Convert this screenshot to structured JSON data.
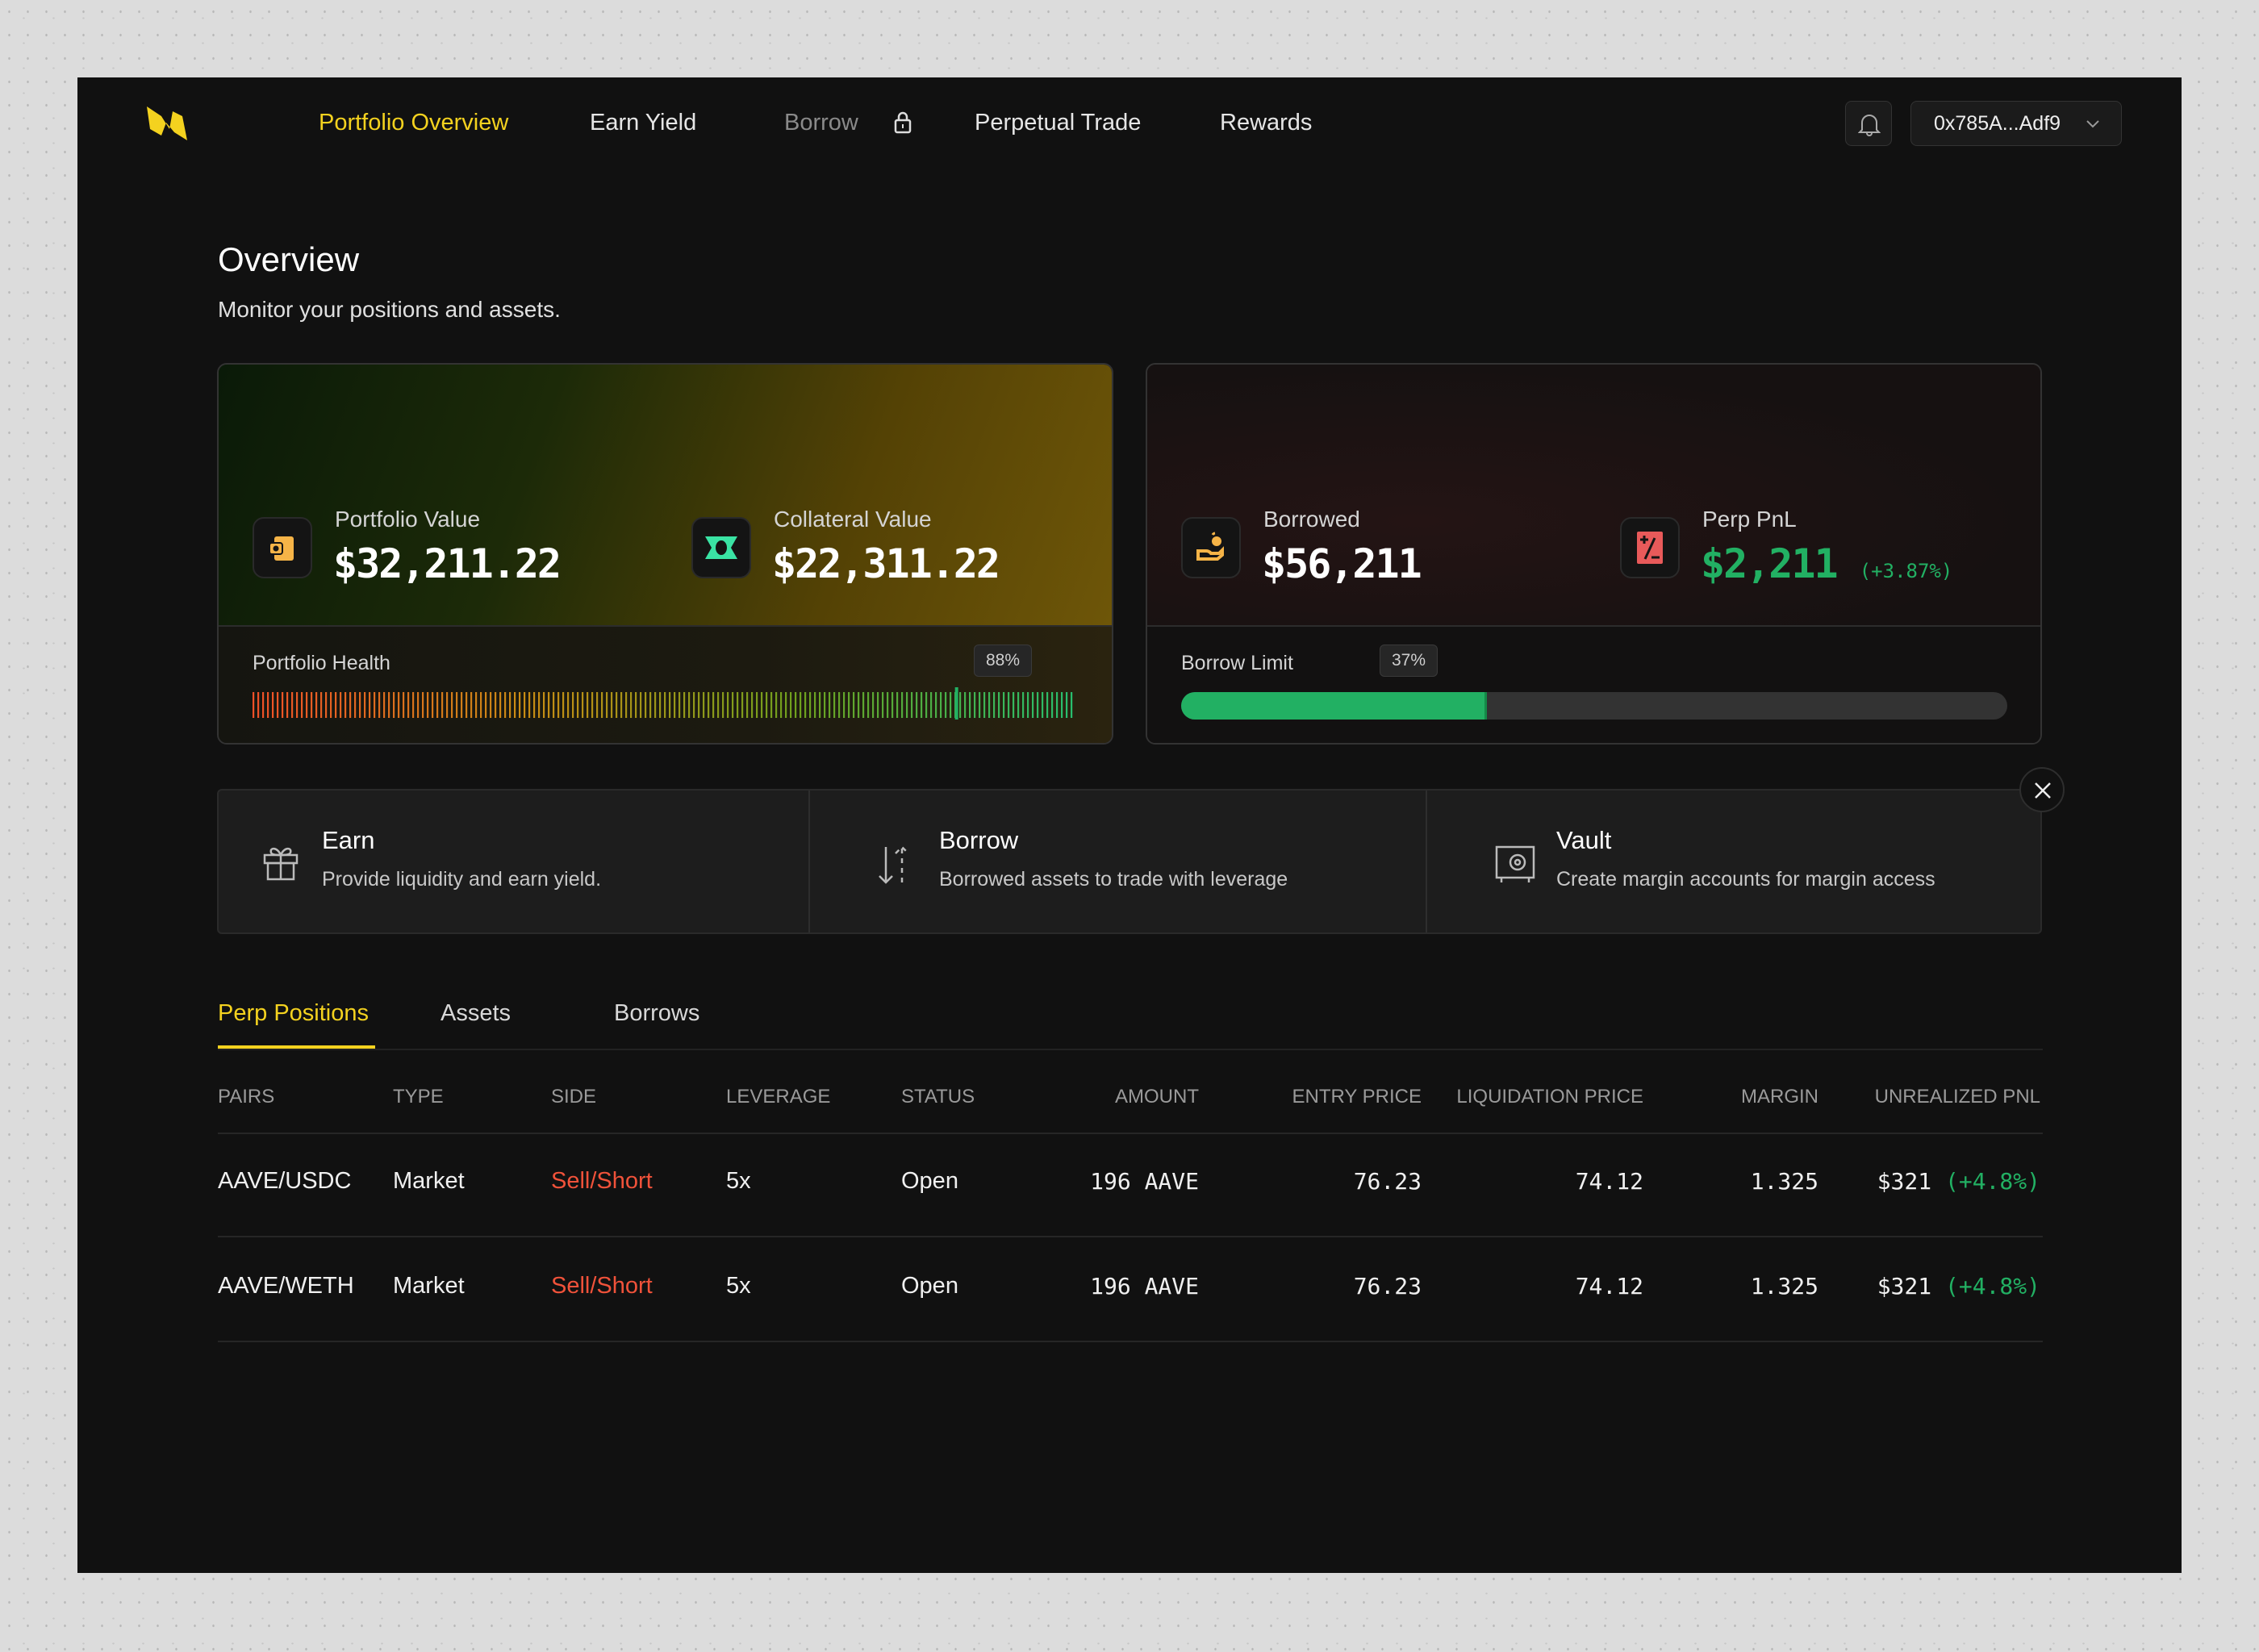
{
  "nav": {
    "items": [
      {
        "label": "Portfolio Overview"
      },
      {
        "label": "Earn Yield"
      },
      {
        "label": "Borrow"
      },
      {
        "label": "Perpetual Trade"
      },
      {
        "label": "Rewards"
      }
    ],
    "wallet": "0x785A...Adf9"
  },
  "page": {
    "title": "Overview",
    "subtitle": "Monitor your positions and assets."
  },
  "card1": {
    "portfolio_label": "Portfolio Value",
    "portfolio_value": "$32,211.22",
    "collateral_label": "Collateral Value",
    "collateral_value": "$22,311.22",
    "health_label": "Portfolio Health",
    "health_pct": "88%",
    "health_value": 0.88
  },
  "card2": {
    "borrowed_label": "Borrowed",
    "borrowed_value": "$56,211",
    "pnl_label": "Perp PnL",
    "pnl_value": "$2,211",
    "pnl_change": "(+3.87%)",
    "limit_label": "Borrow Limit",
    "limit_pct": "37%",
    "limit_value": 0.37
  },
  "actions": [
    {
      "title": "Earn",
      "desc": "Provide liquidity and earn yield."
    },
    {
      "title": "Borrow",
      "desc": "Borrowed assets to trade with leverage"
    },
    {
      "title": "Vault",
      "desc": "Create margin accounts for margin access"
    }
  ],
  "tabs": [
    "Perp Positions",
    "Assets",
    "Borrows"
  ],
  "table": {
    "headers": [
      "PAIRS",
      "TYPE",
      "SIDE",
      "LEVERAGE",
      "STATUS",
      "AMOUNT",
      "ENTRY PRICE",
      "LIQUIDATION PRICE",
      "MARGIN",
      "UNREALIZED PNL"
    ],
    "rows": [
      {
        "pair": "AAVE/USDC",
        "type": "Market",
        "side": "Sell/Short",
        "leverage": "5x",
        "status": "Open",
        "amount": "196 AAVE",
        "entry": "76.23",
        "liq": "74.12",
        "margin": "1.325",
        "pnl": "$321",
        "pnl_change": "(+4.8%)"
      },
      {
        "pair": "AAVE/WETH",
        "type": "Market",
        "side": "Sell/Short",
        "leverage": "5x",
        "status": "Open",
        "amount": "196 AAVE",
        "entry": "76.23",
        "liq": "74.12",
        "margin": "1.325",
        "pnl": "$321",
        "pnl_change": "(+4.8%)"
      }
    ]
  },
  "colors": {
    "accent": "#f4d21f",
    "green": "#22b063",
    "red": "#f0523a"
  }
}
